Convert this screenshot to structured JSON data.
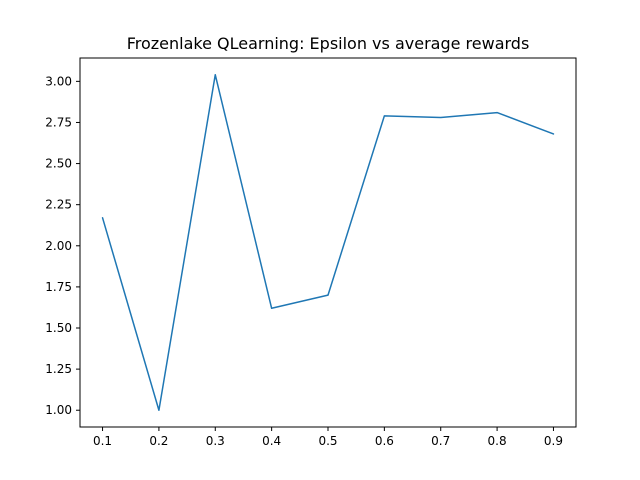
{
  "chart_data": {
    "type": "line",
    "title": "Frozenlake QLearning: Epsilon vs average rewards",
    "xlabel": "",
    "ylabel": "",
    "x": [
      0.1,
      0.2,
      0.3,
      0.4,
      0.5,
      0.6,
      0.7,
      0.8,
      0.9
    ],
    "series": [
      {
        "values": [
          2.17,
          1.0,
          3.04,
          1.62,
          1.7,
          2.79,
          2.78,
          2.81,
          2.68
        ],
        "color": "#1f77b4"
      }
    ],
    "x_ticks": [
      "0.1",
      "0.2",
      "0.3",
      "0.4",
      "0.5",
      "0.6",
      "0.7",
      "0.8",
      "0.9"
    ],
    "y_ticks": [
      "1.00",
      "1.25",
      "1.50",
      "1.75",
      "2.00",
      "2.25",
      "2.50",
      "2.75",
      "3.00"
    ],
    "xlim": [
      0.06,
      0.94
    ],
    "ylim": [
      0.898,
      3.142
    ],
    "grid": false,
    "legend": "none"
  }
}
